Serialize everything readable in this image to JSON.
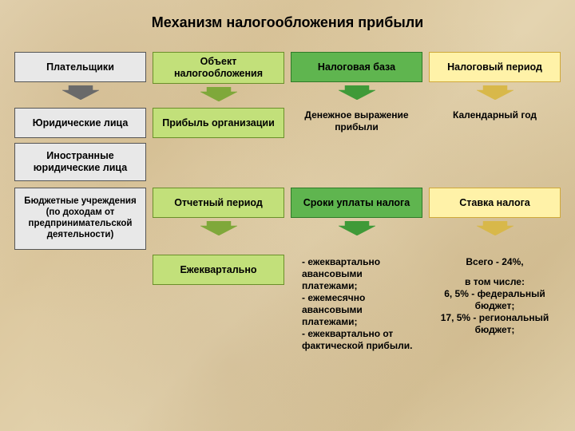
{
  "title": "Механизм налогообложения прибыли",
  "colors": {
    "col1_fill": "#e8e8e8",
    "col1_border": "#555555",
    "col1_arrow": "#6a6a6a",
    "col2_fill": "#c2e07a",
    "col2_border": "#6a8f2a",
    "col2_arrow": "#7fa83a",
    "col3_fill": "#5fb54f",
    "col3_border": "#2f7a28",
    "col3_arrow": "#3f9a38",
    "col4_fill": "#fff2a8",
    "col4_border": "#cfa93a",
    "col4_arrow": "#d8b84a",
    "text": "#000000"
  },
  "layout": {
    "columns": 4,
    "box_font_size": 12.5,
    "title_font_size": 18,
    "text_font_size": 12
  },
  "headers": {
    "c1": "Плательщики",
    "c2": "Объект налогообложения",
    "c3": "Налоговая база",
    "c4": "Налоговый период"
  },
  "row2": {
    "c1": "Юридические лица",
    "c2": "Прибыль организации",
    "c3": "Денежное выражение прибыли",
    "c4": "Календарный год"
  },
  "col1_extra1": "Иностранные юридические лица",
  "row3": {
    "c1": "Бюджетные учреждения (по доходам от предпринимательской деятельности)",
    "c2": "Отчетный период",
    "c3": "Сроки уплаты налога",
    "c4": "Ставка налога"
  },
  "row5": {
    "c2": "Ежеквартально",
    "c3": "- ежеквартально авансовыми платежами;\n- ежемесячно авансовыми платежами;\n- ежеквартально от фактической прибыли.",
    "c4_a": "Всего - 24%,",
    "c4_b": "в том числе:\n6, 5% - федеральный бюджет;\n17, 5% - региональный бюджет;"
  }
}
